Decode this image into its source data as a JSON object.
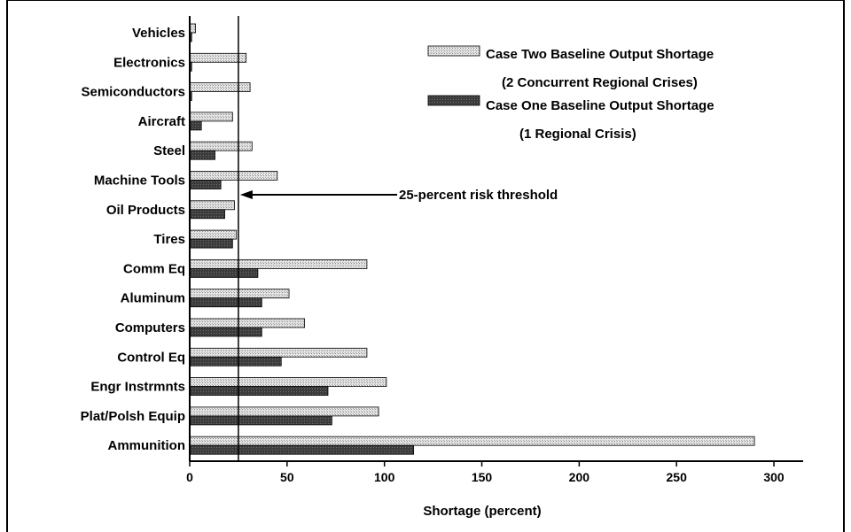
{
  "chart_data": {
    "type": "bar",
    "orientation": "horizontal",
    "categories": [
      "Vehicles",
      "Electronics",
      "Semiconductors",
      "Aircraft",
      "Steel",
      "Machine Tools",
      "Oil Products",
      "Tires",
      "Comm Eq",
      "Aluminum",
      "Computers",
      "Control Eq",
      "Engr Instrmnts",
      "Plat/Polsh Equip",
      "Ammunition"
    ],
    "series": [
      {
        "name": "Case Two Baseline Output Shortage",
        "name_line2": "(2 Concurrent Regional Crises)",
        "color": "#d6d6d6",
        "values": [
          3,
          29,
          31,
          22,
          32,
          45,
          23,
          24,
          91,
          51,
          59,
          91,
          101,
          97,
          290
        ]
      },
      {
        "name": "Case One Baseline Output Shortage",
        "name_line2": "(1 Regional Crisis)",
        "color": "#3a3a3a",
        "values": [
          1,
          1,
          1,
          6,
          13,
          16,
          18,
          22,
          35,
          37,
          37,
          47,
          71,
          73,
          115
        ]
      }
    ],
    "xlabel": "Shortage (percent)",
    "ylabel": "",
    "xlim": [
      0,
      315
    ],
    "xticks": [
      0,
      50,
      100,
      150,
      200,
      250,
      300
    ],
    "threshold": {
      "value": 25,
      "label": "25-percent risk threshold"
    },
    "legend_position": "top-right",
    "grid": false
  }
}
